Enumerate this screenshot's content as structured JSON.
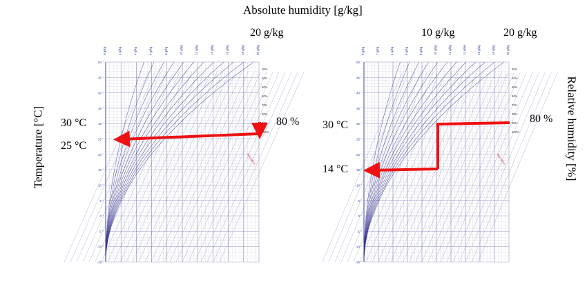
{
  "title": "Absolute humidity [g/kg]",
  "y_axis_label": "Temperature [°C]",
  "right_axis_label": "Relative humidity [%]",
  "left_panel": {
    "abs_humidity": "20 g/kg",
    "temp_start": "30 °C",
    "temp_end": "25 °C",
    "rh": "80 %"
  },
  "right_panel": {
    "abs_humidity_a": "10 g/kg",
    "abs_humidity_b": "20 g/kg",
    "temp_start": "30 °C",
    "temp_end": "14 °C",
    "rh": "80 %"
  },
  "chart_axis": {
    "temperature_ticks": [
      "50 °",
      "45 °",
      "40 °",
      "35 °",
      "30 °",
      "25 °",
      "20 °",
      "15 °",
      "10 °",
      "5 °",
      "0 °",
      "-5 °",
      "-10 °",
      "-15 °"
    ],
    "humidity_ticks": [
      "0 g/kg",
      "2 g/kg",
      "4 g/kg",
      "6 g/kg",
      "8 g/kg",
      "10 g/kg",
      "12 g/kg",
      "14 g/kg",
      "16 g/kg",
      "18 g/kg",
      "20 g/kg"
    ],
    "rh_ticks": [
      "30%",
      "40%",
      "50%",
      "60%",
      "70%",
      "80%",
      "90%",
      "100%"
    ],
    "saturation_label": "Saturation",
    "colors": {
      "grid": "#2a2a8a",
      "tick_text": "#3344aa",
      "saturation": "#cc3333",
      "enthalpy_text": "#cc3333",
      "density_text": "#2a8a2a",
      "arrow": "#ee1111"
    }
  }
}
